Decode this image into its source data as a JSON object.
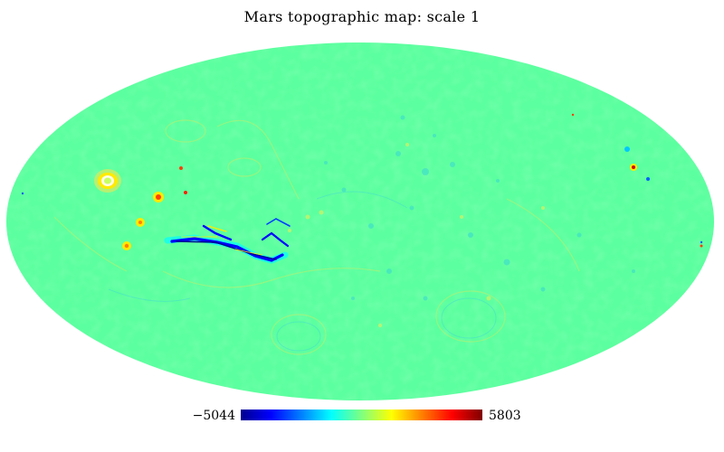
{
  "title": "Mars topographic map: scale 1",
  "colorbar": {
    "min_label": "−5044",
    "max_label": "5803",
    "colormap": "jet",
    "stops": [
      "#00008f",
      "#0000ff",
      "#00ffff",
      "#7fff7f",
      "#ffff00",
      "#ff0000",
      "#800000"
    ]
  },
  "map": {
    "projection": "Mollweide",
    "background_color": "#5cff9f"
  }
}
